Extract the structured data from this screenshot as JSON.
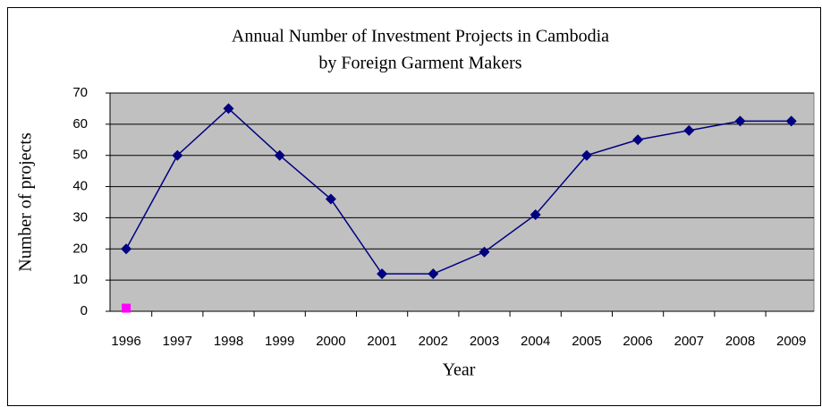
{
  "chart_data": {
    "type": "line",
    "title": [
      "Annual Number of Investment Projects in Cambodia",
      "by Foreign Garment Makers"
    ],
    "xlabel": "Year",
    "ylabel": "Number of projects",
    "categories": [
      "1996",
      "1997",
      "1998",
      "1999",
      "2000",
      "2001",
      "2002",
      "2003",
      "2004",
      "2005",
      "2006",
      "2007",
      "2008",
      "2009"
    ],
    "series": [
      {
        "color": "#000080",
        "values": [
          20,
          50,
          65,
          50,
          36,
          12,
          12,
          19,
          31,
          50,
          55,
          58,
          61,
          61
        ]
      },
      {
        "color": "#ff00ff",
        "values": [
          1,
          null,
          null,
          null,
          null,
          null,
          null,
          null,
          null,
          null,
          null,
          null,
          null,
          null
        ]
      }
    ],
    "ylim": [
      0,
      70
    ],
    "yticks": [
      0,
      10,
      20,
      30,
      40,
      50,
      60,
      70
    ],
    "grid": true
  }
}
